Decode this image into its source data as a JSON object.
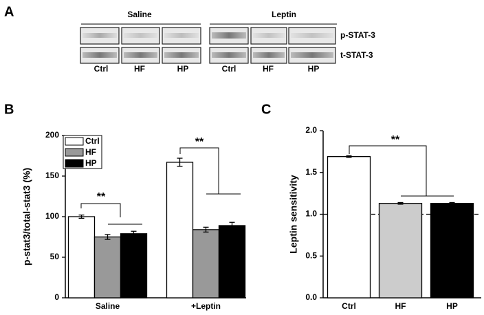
{
  "panel_a": {
    "label": "A",
    "groups": [
      "Saline",
      "Leptin"
    ],
    "rows": [
      "p-STAT-3",
      "t-STAT-3"
    ],
    "lanes": [
      "Ctrl",
      "HF",
      "HP",
      "Ctrl",
      "HF",
      "HP"
    ]
  },
  "chart_data": [
    {
      "type": "grouped-bar",
      "panel": "B",
      "ylabel": "p-stat3/total-stat3 (%)",
      "categories": [
        "Saline",
        "+Leptin"
      ],
      "series": [
        {
          "name": "Ctrl",
          "color": "#ffffff",
          "values": [
            100,
            167
          ],
          "errors": [
            2,
            5
          ]
        },
        {
          "name": "HF",
          "color": "#999999",
          "values": [
            75,
            84
          ],
          "errors": [
            3,
            3
          ]
        },
        {
          "name": "HP",
          "color": "#000000",
          "values": [
            79,
            89
          ],
          "errors": [
            3,
            4
          ]
        }
      ],
      "ylim": [
        0,
        200
      ],
      "yticks": [
        0,
        50,
        100,
        150,
        200
      ],
      "legend": "top-left",
      "annotations": [
        "**",
        "**"
      ]
    },
    {
      "type": "bar",
      "panel": "C",
      "ylabel": "Leptin sensitivity",
      "categories": [
        "Ctrl",
        "HF",
        "HP"
      ],
      "values": [
        1.69,
        1.13,
        1.13
      ],
      "errors": [
        0.01,
        0.01,
        0.01
      ],
      "colors": [
        "#ffffff",
        "#cccccc",
        "#000000"
      ],
      "ylim": [
        0,
        2
      ],
      "yticks": [
        {
          "value": 0,
          "label": "0.0"
        },
        {
          "value": 0.5,
          "label": "0.5"
        },
        {
          "value": 1,
          "label": "1.0"
        },
        {
          "value": 1.5,
          "label": "1.5"
        },
        {
          "value": 2,
          "label": "2.0"
        }
      ],
      "reference_line": 1,
      "annotations": [
        "**"
      ]
    }
  ]
}
